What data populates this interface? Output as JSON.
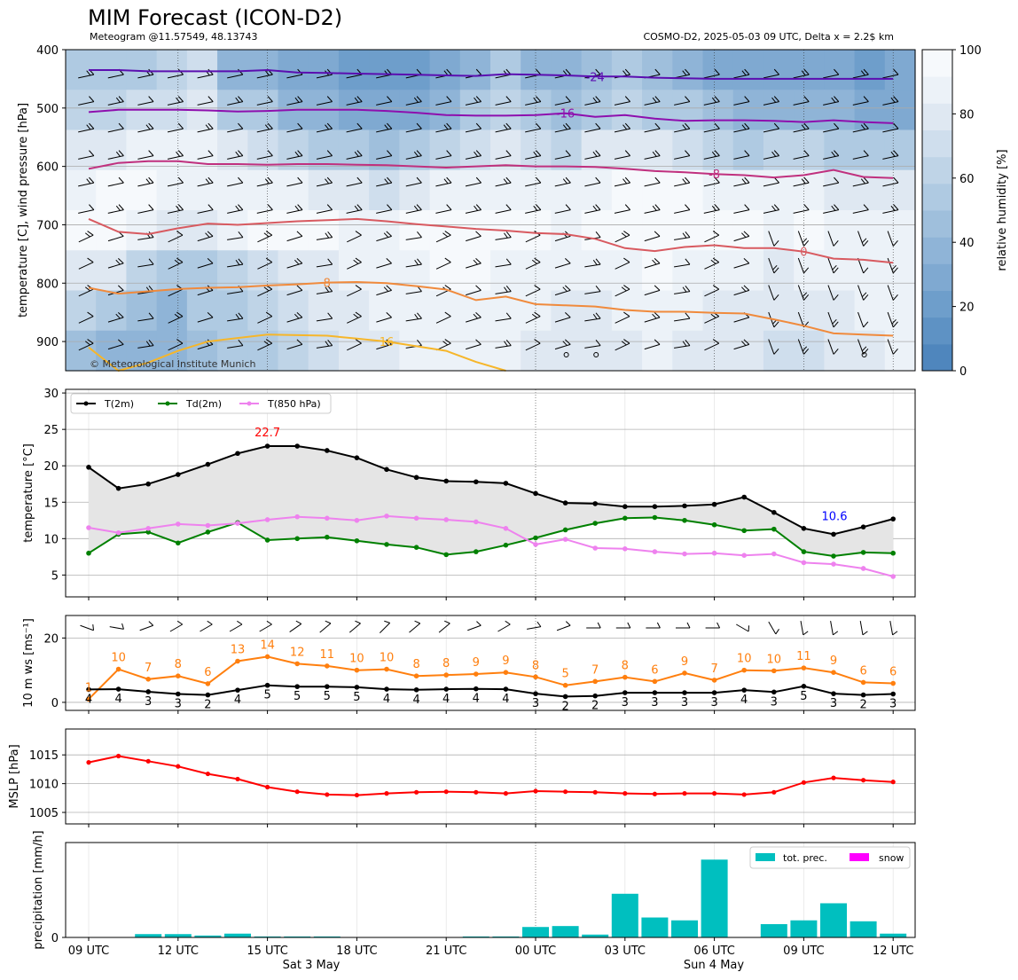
{
  "header": {
    "title": "MIM Forecast (ICON-D2)",
    "subtitle_left": "Meteogram @11.57549, 48.13743",
    "subtitle_right": "COSMO-D2, 2025-05-03 09 UTC, Delta x = 2.2$ km"
  },
  "colors": {
    "t2m": "#000000",
    "td2m": "#008000",
    "t850": "#ee82ee",
    "ws": "#ff7f0e",
    "mslp": "#ff0000",
    "precip": "#00bfbf",
    "snow": "#ff00ff",
    "max_label": "#ff0000",
    "min_label": "#0000ff"
  },
  "x_axis": {
    "tick_labels": [
      "09 UTC",
      "12 UTC",
      "15 UTC",
      "18 UTC",
      "21 UTC",
      "00 UTC",
      "03 UTC",
      "06 UTC",
      "09 UTC",
      "12 UTC"
    ],
    "day_labels": [
      "Sat 3 May",
      "Sun 4 May"
    ]
  },
  "chart_data": [
    {
      "id": "upper",
      "type": "heatmap",
      "ylabel": "temperature [C], wind pressure [hPa]",
      "y_ticks": [
        400,
        500,
        600,
        700,
        800,
        900
      ],
      "ylim": [
        950,
        400
      ],
      "colorbar": {
        "label": "relative humidity [%]",
        "ticks": [
          0,
          20,
          40,
          60,
          80,
          100
        ]
      },
      "credit": "© Meteorological Institute Munich",
      "isotherms": [
        {
          "label": "-24",
          "color": "#5b0eb0",
          "p": [
            435,
            435,
            437,
            437,
            437,
            437,
            435,
            439,
            440,
            441,
            442,
            443,
            444,
            445,
            442,
            443,
            444,
            446,
            446,
            448,
            449,
            450,
            450,
            450,
            450,
            450,
            450,
            450
          ]
        },
        {
          "label": "-16",
          "color": "#8e0fae",
          "p": [
            507,
            503,
            503,
            503,
            504,
            506,
            505,
            503,
            503,
            503,
            505,
            508,
            512,
            513,
            513,
            512,
            509,
            515,
            512,
            518,
            522,
            521,
            521,
            522,
            524,
            521,
            524,
            526
          ]
        },
        {
          "label": "-8",
          "color": "#c0307e",
          "p": [
            604,
            594,
            591,
            591,
            596,
            596,
            597,
            596,
            596,
            597,
            598,
            600,
            602,
            600,
            598,
            600,
            600,
            601,
            604,
            608,
            610,
            613,
            615,
            619,
            615,
            606,
            618,
            620
          ]
        },
        {
          "label": "0",
          "color": "#d85a60",
          "p": [
            690,
            712,
            716,
            706,
            698,
            700,
            697,
            694,
            692,
            690,
            694,
            699,
            703,
            707,
            710,
            714,
            716,
            724,
            740,
            745,
            738,
            735,
            740,
            740,
            746,
            758,
            760,
            765
          ]
        },
        {
          "label": "8",
          "color": "#f08a3c",
          "p": [
            808,
            818,
            814,
            810,
            808,
            807,
            804,
            802,
            799,
            798,
            800,
            805,
            811,
            829,
            823,
            836,
            838,
            840,
            846,
            849,
            849,
            851,
            852,
            862,
            873,
            886,
            888,
            890
          ]
        },
        {
          "label": "16",
          "color": "#f6b62a",
          "p": [
            910,
            950,
            936,
            916,
            900,
            894,
            888,
            889,
            890,
            895,
            900,
            908,
            916,
            935,
            950
          ]
        }
      ],
      "humidity_grid": [
        [
          55,
          50,
          55,
          62,
          70,
          40,
          35,
          30,
          25,
          22,
          20,
          22,
          30,
          40,
          55,
          40,
          35,
          45,
          50,
          45,
          40,
          30,
          25,
          28,
          30,
          25,
          22,
          25
        ],
        [
          60,
          65,
          70,
          72,
          80,
          55,
          50,
          40,
          35,
          32,
          30,
          32,
          40,
          55,
          62,
          50,
          45,
          55,
          60,
          55,
          50,
          42,
          35,
          38,
          40,
          35,
          30,
          32
        ],
        [
          75,
          80,
          85,
          85,
          85,
          75,
          70,
          65,
          55,
          50,
          48,
          50,
          60,
          72,
          80,
          70,
          65,
          75,
          80,
          75,
          70,
          65,
          55,
          60,
          62,
          55,
          50,
          55
        ],
        [
          90,
          95,
          92,
          88,
          90,
          90,
          88,
          85,
          80,
          75,
          72,
          75,
          85,
          90,
          90,
          88,
          85,
          90,
          92,
          92,
          92,
          90,
          85,
          85,
          88,
          80,
          75,
          80
        ],
        [
          95,
          92,
          85,
          80,
          82,
          88,
          92,
          94,
          95,
          90,
          88,
          92,
          95,
          95,
          95,
          92,
          90,
          92,
          95,
          95,
          95,
          95,
          92,
          90,
          92,
          85,
          85,
          88
        ],
        [
          80,
          75,
          60,
          50,
          55,
          65,
          72,
          80,
          82,
          85,
          88,
          90,
          92,
          92,
          90,
          88,
          85,
          88,
          90,
          92,
          90,
          88,
          85,
          82,
          85,
          85,
          88,
          90
        ],
        [
          60,
          55,
          45,
          40,
          50,
          55,
          60,
          70,
          75,
          80,
          85,
          88,
          90,
          90,
          88,
          85,
          80,
          82,
          85,
          88,
          85,
          82,
          80,
          75,
          78,
          80,
          85,
          90
        ],
        [
          45,
          40,
          35,
          35,
          45,
          50,
          55,
          62,
          68,
          75,
          82,
          85,
          88,
          88,
          85,
          82,
          75,
          78,
          82,
          85,
          80,
          78,
          75,
          70,
          72,
          78,
          82,
          88
        ]
      ]
    },
    {
      "id": "temperature",
      "type": "line",
      "ylabel": "temperature [$^\\circ$C]",
      "ylim": [
        2,
        30.5
      ],
      "y_ticks": [
        5,
        10,
        15,
        20,
        25,
        30
      ],
      "legend": "top-left",
      "max_label": "22.7",
      "min_label": "10.6",
      "series": [
        {
          "name": "T(2m)",
          "color": "#000000",
          "values": [
            19.8,
            16.9,
            17.5,
            18.8,
            20.2,
            21.7,
            22.7,
            22.7,
            22.1,
            21.1,
            19.5,
            18.4,
            17.9,
            17.8,
            17.6,
            16.2,
            14.9,
            14.8,
            14.4,
            14.4,
            14.5,
            14.7,
            15.7,
            13.6,
            11.4,
            10.6,
            11.6,
            12.7
          ]
        },
        {
          "name": "Td(2m)",
          "color": "#008000",
          "values": [
            8.0,
            10.6,
            10.9,
            9.4,
            10.9,
            12.2,
            9.8,
            10.0,
            10.2,
            9.7,
            9.2,
            8.8,
            7.8,
            8.2,
            9.1,
            10.1,
            11.2,
            12.1,
            12.8,
            12.9,
            12.5,
            11.9,
            11.1,
            11.3,
            8.2,
            7.6,
            8.1,
            8.0
          ]
        },
        {
          "name": "T(850 hPa)",
          "color": "#ee82ee",
          "values": [
            11.5,
            10.8,
            11.4,
            12.0,
            11.8,
            12.1,
            12.6,
            13.0,
            12.8,
            12.5,
            13.1,
            12.8,
            12.6,
            12.3,
            11.4,
            9.2,
            9.9,
            8.7,
            8.6,
            8.2,
            7.9,
            8.0,
            7.7,
            7.9,
            6.7,
            6.5,
            5.9,
            4.8
          ]
        }
      ]
    },
    {
      "id": "wind",
      "type": "line",
      "ylabel": "10 m ws [ms$^{-1}$]",
      "ylim": [
        -2.5,
        27
      ],
      "y_ticks": [
        0,
        20
      ],
      "series": [
        {
          "name": "gusts",
          "color": "#ff7f0e",
          "values": [
            1,
            10.3,
            7.2,
            8.2,
            5.8,
            12.8,
            14.2,
            12.0,
            11.3,
            10.0,
            10.3,
            8.2,
            8.5,
            8.8,
            9.3,
            7.9,
            5.3,
            6.5,
            7.8,
            6.5,
            9.1,
            6.9,
            10.0,
            9.8,
            10.7,
            9.3,
            6.2,
            5.9
          ],
          "labels": [
            "1",
            "10",
            "7",
            "8",
            "6",
            "13",
            "14",
            "12",
            "11",
            "10",
            "10",
            "8",
            "8",
            "9",
            "9",
            "8",
            "5",
            "7",
            "8",
            "6",
            "9",
            "7",
            "10",
            "10",
            "11",
            "9",
            "6",
            "6"
          ]
        },
        {
          "name": "mean",
          "color": "#000000",
          "values": [
            4.0,
            4.1,
            3.3,
            2.6,
            2.3,
            3.8,
            5.3,
            4.9,
            4.9,
            4.7,
            4.1,
            3.9,
            4.1,
            4.2,
            4.1,
            2.7,
            1.8,
            2.0,
            3.0,
            3.0,
            3.0,
            3.0,
            3.8,
            3.2,
            5.0,
            2.7,
            2.3,
            2.6
          ],
          "labels": [
            "4",
            "4",
            "3",
            "3",
            "2",
            "4",
            "5",
            "5",
            "5",
            "5",
            "4",
            "4",
            "4",
            "4",
            "4",
            "3",
            "2",
            "2",
            "3",
            "3",
            "3",
            "3",
            "4",
            "3",
            "5",
            "3",
            "2",
            "3"
          ]
        }
      ],
      "wind_dir_deg": [
        290,
        280,
        250,
        240,
        240,
        240,
        240,
        235,
        230,
        230,
        225,
        230,
        230,
        250,
        240,
        260,
        250,
        270,
        270,
        270,
        270,
        270,
        300,
        330,
        350,
        350,
        350,
        350
      ]
    },
    {
      "id": "mslp",
      "type": "line",
      "ylabel": "MSLP [hPa]",
      "ylim": [
        1003,
        1019.5
      ],
      "y_ticks": [
        1005,
        1010,
        1015
      ],
      "series": [
        {
          "name": "MSLP",
          "color": "#ff0000",
          "values": [
            1013.7,
            1014.8,
            1013.9,
            1013.0,
            1011.7,
            1010.8,
            1009.4,
            1008.6,
            1008.1,
            1008.0,
            1008.3,
            1008.5,
            1008.6,
            1008.5,
            1008.3,
            1008.7,
            1008.6,
            1008.5,
            1008.3,
            1008.2,
            1008.3,
            1008.3,
            1008.1,
            1008.5,
            1010.2,
            1011.0,
            1010.6,
            1010.3
          ]
        }
      ]
    },
    {
      "id": "precipitation",
      "type": "bar",
      "ylabel": "precipitation [mm/h]",
      "ylim": [
        0,
        1
      ],
      "y_ticks": [
        0
      ],
      "legend": "top-right",
      "series": [
        {
          "name": "tot. prec.",
          "color": "#00bfbf",
          "values": [
            0,
            0.035,
            0.035,
            0.02,
            0.04,
            0.01,
            0.01,
            0.01,
            0,
            0,
            0,
            0,
            0.01,
            0.01,
            0.11,
            0.12,
            0.03,
            0.46,
            0.21,
            0.18,
            0.82,
            0,
            0.14,
            0.18,
            0.36,
            0.17,
            0.04
          ]
        },
        {
          "name": "snow",
          "color": "#ff00ff",
          "values": [
            0,
            0,
            0,
            0,
            0,
            0,
            0,
            0,
            0,
            0,
            0,
            0,
            0,
            0,
            0,
            0,
            0,
            0,
            0,
            0,
            0,
            0,
            0,
            0,
            0,
            0,
            0
          ]
        }
      ]
    }
  ]
}
